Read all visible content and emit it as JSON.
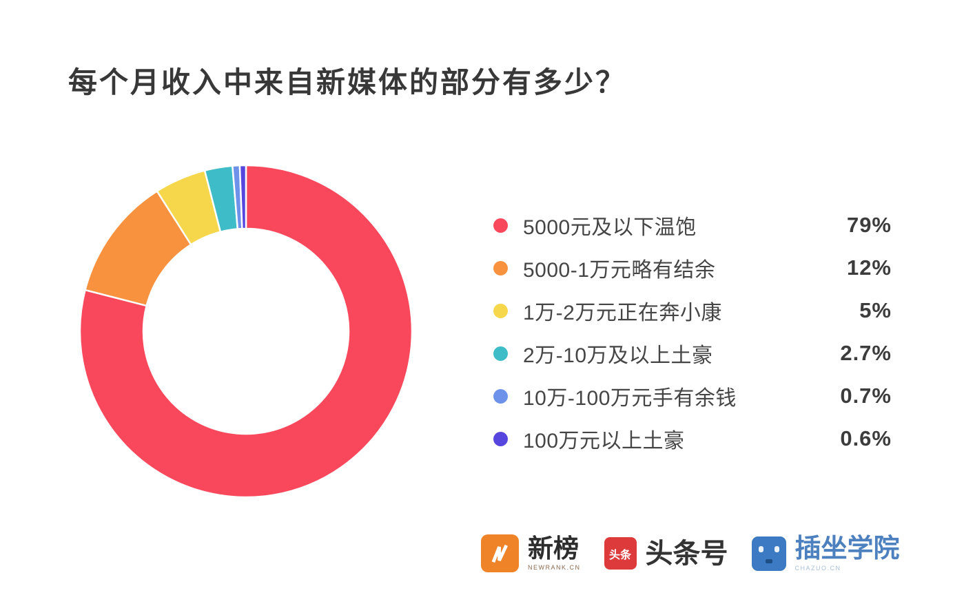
{
  "title": "每个月收入中来自新媒体的部分有多少？",
  "chart_data": {
    "type": "pie",
    "subtype": "donut",
    "title": "每个月收入中来自新媒体的部分有多少？",
    "start_angle_deg": 0,
    "direction": "clockwise",
    "inner_radius_ratio": 0.62,
    "legend_position": "right",
    "segments": [
      {
        "label": "5000元及以下温饱",
        "value_pct": 79,
        "display": "79%",
        "color": "#F9485C"
      },
      {
        "label": "5000-1万元略有结余",
        "value_pct": 12,
        "display": "12%",
        "color": "#F9923E"
      },
      {
        "label": "1万-2万元正在奔小康",
        "value_pct": 5,
        "display": "5%",
        "color": "#F6D74B"
      },
      {
        "label": "2万-10万及以上土豪",
        "value_pct": 2.7,
        "display": "2.7%",
        "color": "#3EBDC9"
      },
      {
        "label": "10万-100万元手有余钱",
        "value_pct": 0.7,
        "display": "0.7%",
        "color": "#6E92E9"
      },
      {
        "label": "100万元以上土豪",
        "value_pct": 0.6,
        "display": "0.6%",
        "color": "#5746DE"
      }
    ],
    "colors": {
      "background": "#ffffff",
      "separator": "#ffffff"
    }
  },
  "footer": {
    "logos": [
      {
        "name": "新榜",
        "text": "新榜",
        "subtext": "NEWRANK.CN",
        "icon_color": "#EF8327",
        "icon_glyph": "N-lightning"
      },
      {
        "name": "头条号",
        "text": "头条号",
        "icon_text": "头条",
        "icon_color": "#DD3A3C"
      },
      {
        "name": "插坐学院",
        "text": "插坐学院",
        "subtext": "CHAZUO.CN",
        "icon_color": "#3C7BC4",
        "icon_glyph": "robot-face"
      }
    ]
  }
}
